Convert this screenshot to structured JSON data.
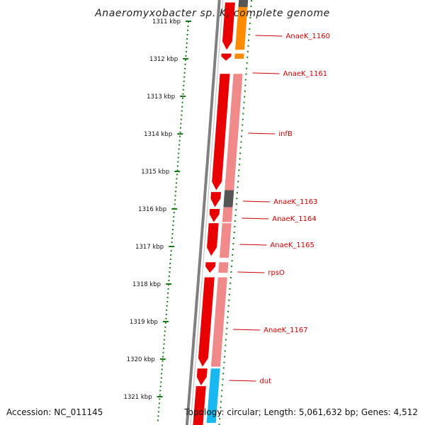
{
  "title": "Anaeromyxobacter sp. K, complete genome",
  "accession": "Accession: NC_011145",
  "topology": "Topology: circular; Length: 5,061,632 bp; Genes: 4,512",
  "colors": {
    "gene_strand": "#e80000",
    "gene_light": "#f08a8a",
    "orange": "#ff8c00",
    "cyan": "#19b8f0",
    "dark": "#555555",
    "backbone": "#808080",
    "ruler": "#1a7a1a",
    "label": "#cc0000"
  },
  "kbp_labels": [
    "1311 kbp",
    "1312 kbp",
    "1313 kbp",
    "1314 kbp",
    "1315 kbp",
    "1316 kbp",
    "1317 kbp",
    "1318 kbp",
    "1319 kbp",
    "1320 kbp",
    "1321 kbp"
  ],
  "kbp_start": 1311,
  "genes": [
    {
      "label": "AnaeK_1160",
      "start": 1310.5,
      "end": 1311.76,
      "color": "orange"
    },
    {
      "label": "AnaeK_1161",
      "start": 1311.86,
      "end": 1312.0,
      "color": "orange"
    },
    {
      "label": "infB",
      "start": 1312.4,
      "end": 1316.3,
      "color": "light"
    },
    {
      "label": "AnaeK_1163",
      "start": 1315.5,
      "end": 1315.95,
      "color": "dark"
    },
    {
      "label": "AnaeK_1164",
      "start": 1316.0,
      "end": 1316.35,
      "color": "light"
    },
    {
      "label": "AnaeK_1165",
      "start": 1316.38,
      "end": 1317.3,
      "color": "light"
    },
    {
      "label": "rpsO",
      "start": 1317.42,
      "end": 1317.7,
      "color": "light"
    },
    {
      "label": "AnaeK_1167",
      "start": 1317.82,
      "end": 1320.2,
      "color": "light"
    },
    {
      "label": "dut",
      "start": 1320.25,
      "end": 1321.7,
      "color": "cyan"
    }
  ]
}
